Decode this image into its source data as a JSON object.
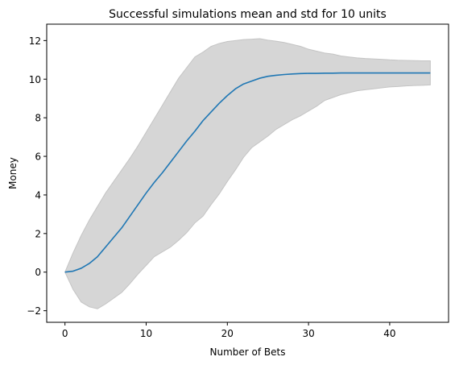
{
  "chart_data": {
    "type": "line",
    "title": "Successful simulations mean and std for 10 units",
    "xlabel": "Number of Bets",
    "ylabel": "Money",
    "xlim": [
      -2.25,
      47.25
    ],
    "ylim": [
      -2.6,
      12.85
    ],
    "xticks": [
      0,
      10,
      20,
      30,
      40
    ],
    "yticks": [
      -2,
      0,
      2,
      4,
      6,
      8,
      10,
      12
    ],
    "ytick_labels": [
      "−2",
      "0",
      "2",
      "4",
      "6",
      "8",
      "10",
      "12"
    ],
    "grid": false,
    "colors": {
      "mean": "#1f77b4",
      "band": "#d6d6d6",
      "band_edge": "#c4c4c4"
    },
    "x": [
      0,
      1,
      2,
      3,
      4,
      5,
      6,
      7,
      8,
      9,
      10,
      11,
      12,
      13,
      14,
      15,
      16,
      17,
      18,
      19,
      20,
      21,
      22,
      23,
      24,
      25,
      26,
      27,
      28,
      29,
      30,
      31,
      32,
      33,
      34,
      35,
      36,
      37,
      38,
      39,
      40,
      41,
      42,
      43,
      44,
      45
    ],
    "series": [
      {
        "role": "mean",
        "values": [
          0.0,
          0.05,
          0.2,
          0.45,
          0.8,
          1.3,
          1.8,
          2.3,
          2.9,
          3.5,
          4.1,
          4.65,
          5.15,
          5.7,
          6.25,
          6.8,
          7.3,
          7.85,
          8.3,
          8.75,
          9.15,
          9.5,
          9.75,
          9.9,
          10.05,
          10.15,
          10.2,
          10.24,
          10.27,
          10.29,
          10.3,
          10.3,
          10.31,
          10.31,
          10.32,
          10.32,
          10.32,
          10.32,
          10.32,
          10.32,
          10.32,
          10.32,
          10.32,
          10.32,
          10.32,
          10.32
        ]
      },
      {
        "role": "upper",
        "values": [
          0.0,
          1.0,
          1.9,
          2.7,
          3.4,
          4.1,
          4.7,
          5.3,
          5.9,
          6.55,
          7.25,
          7.95,
          8.65,
          9.35,
          10.05,
          10.6,
          11.15,
          11.4,
          11.7,
          11.85,
          11.95,
          12.0,
          12.05,
          12.07,
          12.1,
          12.02,
          11.97,
          11.9,
          11.8,
          11.7,
          11.55,
          11.45,
          11.35,
          11.3,
          11.2,
          11.15,
          11.1,
          11.07,
          11.05,
          11.03,
          11.0,
          10.98,
          10.97,
          10.96,
          10.95,
          10.95
        ]
      },
      {
        "role": "lower",
        "values": [
          0.0,
          -0.9,
          -1.55,
          -1.8,
          -1.9,
          -1.65,
          -1.35,
          -1.05,
          -0.6,
          -0.1,
          0.35,
          0.8,
          1.05,
          1.3,
          1.65,
          2.05,
          2.55,
          2.9,
          3.5,
          4.05,
          4.7,
          5.3,
          5.95,
          6.45,
          6.75,
          7.05,
          7.4,
          7.65,
          7.9,
          8.1,
          8.35,
          8.6,
          8.9,
          9.05,
          9.2,
          9.3,
          9.4,
          9.45,
          9.5,
          9.55,
          9.6,
          9.62,
          9.65,
          9.67,
          9.68,
          9.7
        ]
      }
    ]
  }
}
